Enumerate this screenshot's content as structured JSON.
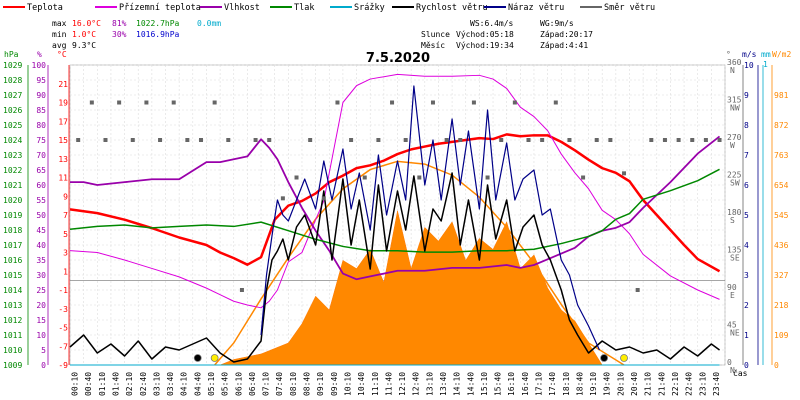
{
  "chart_data": {
    "type": "line",
    "title": "7.5.2020",
    "legend": [
      {
        "label": "Teplota",
        "color": "#ff0000"
      },
      {
        "label": "Přízemní teplota",
        "color": "#dd00dd"
      },
      {
        "label": "Vlhkost",
        "color": "#9900aa"
      },
      {
        "label": "Tlak",
        "color": "#008800"
      },
      {
        "label": "Srážky",
        "color": "#00aacc"
      },
      {
        "label": "Rychlost větru",
        "color": "#000000"
      },
      {
        "label": "Náraz větru",
        "color": "#000088"
      },
      {
        "label": "Směr větru",
        "color": "#666666"
      }
    ],
    "stats": {
      "max_label": "max",
      "min_label": "min",
      "avg_label": "avg",
      "max_temp": "16.0°C",
      "max_hum": "81%",
      "max_press": "1022.7hPa",
      "max_rain": "0.0mm",
      "min_temp": "1.0°C",
      "min_hum": "30%",
      "min_press": "1016.9hPa",
      "avg_temp": "9.3°C"
    },
    "info": {
      "ws": "WS:6.4m/s",
      "wg": "WG:9m/s",
      "sun_label": "Slunce",
      "sun_rise": "Východ:05:18",
      "sun_set": "Západ:20:17",
      "moon_label": "Měsíc",
      "moon_rise": "Východ:19:34",
      "moon_set": "Západ:4:41"
    },
    "axes": {
      "hpa_unit": "hPa",
      "pct_unit": "%",
      "c_unit": "°C",
      "deg_unit": "°",
      "ms_unit": "m/s",
      "mm_unit": "mm",
      "wm2_unit": "W/m2",
      "x_label": "čas",
      "hpa_ticks": [
        "1029",
        "1028",
        "1027",
        "1026",
        "1025",
        "1024",
        "1023",
        "1022",
        "1021",
        "1020",
        "1019",
        "1018",
        "1017",
        "1016",
        "1015",
        "1014",
        "1013",
        "1012",
        "1011",
        "1010",
        "1009"
      ],
      "pct_ticks": [
        "100",
        "95",
        "90",
        "85",
        "80",
        "75",
        "70",
        "65",
        "60",
        "55",
        "50",
        "45",
        "40",
        "35",
        "30",
        "25",
        "20",
        "15",
        "10",
        "5",
        "0"
      ],
      "c_ticks": [
        "21",
        "19",
        "17",
        "15",
        "13",
        "11",
        "9",
        "7",
        "5",
        "3",
        "1",
        "-1",
        "-3",
        "-5",
        "-7",
        "-9"
      ],
      "dir_ticks": [
        "360 N",
        "315 NW",
        "270 W",
        "225 SW",
        "180 S",
        "135 SE",
        "90 E",
        "45 NE",
        "0 N"
      ],
      "ms_ticks": [
        "10",
        "9",
        "8",
        "7",
        "6",
        "5",
        "4",
        "3",
        "2",
        "1",
        "0"
      ],
      "mm_top": "1",
      "solar_ticks": [
        "981",
        "872",
        "763",
        "654",
        "545",
        "436",
        "327",
        "218",
        "109",
        "0"
      ],
      "x_ticks": [
        "00:10",
        "00:40",
        "01:10",
        "01:40",
        "02:10",
        "02:40",
        "03:10",
        "03:40",
        "04:10",
        "04:40",
        "05:10",
        "05:40",
        "06:10",
        "06:40",
        "07:10",
        "07:40",
        "08:10",
        "08:40",
        "09:10",
        "09:40",
        "10:10",
        "10:40",
        "11:10",
        "11:40",
        "12:10",
        "12:40",
        "13:10",
        "13:40",
        "14:10",
        "14:40",
        "15:10",
        "15:40",
        "16:10",
        "16:40",
        "17:10",
        "17:40",
        "18:10",
        "18:40",
        "19:10",
        "19:40",
        "20:10",
        "20:40",
        "21:10",
        "21:40",
        "22:10",
        "22:40",
        "23:10",
        "23:40"
      ]
    },
    "series": [
      {
        "name": "Teplota",
        "unit": "°C",
        "x_hours": [
          0,
          1,
          2,
          3,
          4,
          5,
          5.5,
          6,
          6.5,
          7,
          7.5,
          8,
          8.5,
          9,
          9.5,
          10,
          10.5,
          11,
          11.5,
          12,
          12.5,
          13,
          13.5,
          14,
          14.5,
          15,
          15.5,
          16,
          16.5,
          17,
          17.5,
          18,
          18.5,
          19,
          19.5,
          20,
          20.5,
          21,
          21.5,
          22,
          22.5,
          23,
          23.8
        ],
        "values": [
          7.6,
          7.2,
          6.5,
          5.6,
          4.6,
          3.8,
          3.0,
          2.4,
          1.7,
          2.5,
          6.5,
          8.0,
          8.5,
          9.3,
          10.5,
          11.2,
          12.0,
          12.3,
          12.8,
          13.5,
          14.0,
          14.3,
          14.6,
          14.8,
          15.0,
          15.2,
          15.1,
          15.6,
          15.4,
          15.5,
          15.5,
          14.8,
          13.9,
          12.9,
          12.0,
          11.5,
          10.6,
          8.6,
          7.0,
          5.4,
          3.8,
          2.3,
          1.0
        ]
      },
      {
        "name": "Přízemní teplota",
        "unit": "°C",
        "x_hours": [
          0,
          1,
          2,
          3,
          4,
          5,
          5.5,
          6,
          6.5,
          7,
          7.3,
          7.6,
          8,
          8.5,
          9,
          9.3,
          9.6,
          10,
          10.5,
          11,
          12,
          13,
          14,
          15,
          15.5,
          16,
          16.5,
          17,
          17.5,
          18,
          18.5,
          19,
          19.5,
          20,
          20.5,
          21,
          22,
          23,
          23.8
        ],
        "values": [
          3.2,
          3.0,
          2.2,
          1.3,
          0.4,
          -0.8,
          -1.5,
          -2.2,
          -2.6,
          -2.9,
          -2.2,
          -1.0,
          2.0,
          3.0,
          6.5,
          8.5,
          13,
          19,
          20.8,
          21.5,
          22.0,
          21.8,
          21.8,
          21.9,
          21.5,
          20.5,
          18.5,
          17.5,
          16.0,
          13.5,
          11.5,
          9.8,
          7.5,
          6.5,
          5.0,
          2.8,
          0.5,
          -1.0,
          -2.0
        ]
      },
      {
        "name": "Vlhkost",
        "unit": "%",
        "x_hours": [
          0,
          0.5,
          1,
          2,
          3,
          4,
          5,
          5.5,
          6,
          6.5,
          7,
          7.3,
          7.6,
          8,
          8.5,
          9,
          9.5,
          10,
          10.5,
          11,
          12,
          13,
          14,
          15,
          16,
          16.5,
          17,
          17.5,
          18,
          18.5,
          19,
          19.5,
          20,
          20.5,
          21,
          22,
          23,
          23.8
        ],
        "values": [
          64,
          64,
          63,
          64,
          65,
          65,
          71,
          71,
          72,
          73,
          79,
          76,
          72,
          64,
          55,
          47,
          40,
          32,
          30,
          31,
          33,
          33,
          34,
          34,
          35,
          34,
          35,
          37,
          39,
          41,
          45,
          47,
          48,
          50,
          55,
          64,
          74,
          80
        ]
      },
      {
        "name": "Tlak",
        "unit": "hPa",
        "x_hours": [
          0,
          1,
          2,
          3,
          4,
          5,
          6,
          7,
          8,
          9,
          10,
          11,
          12,
          13,
          14,
          15,
          16,
          17,
          18,
          19,
          19.5,
          20,
          20.5,
          21,
          22,
          23,
          23.8
        ],
        "values": [
          1018.5,
          1018.7,
          1018.8,
          1018.6,
          1018.7,
          1018.8,
          1018.7,
          1019.0,
          1018.4,
          1017.8,
          1017.3,
          1017.0,
          1017.0,
          1016.9,
          1016.9,
          1017.0,
          1017.0,
          1017.1,
          1017.5,
          1018.0,
          1018.4,
          1019.2,
          1019.6,
          1020.6,
          1021.2,
          1021.9,
          1022.7
        ]
      },
      {
        "name": "Rychlost větru",
        "unit": "m/s",
        "x_hours": [
          0,
          0.5,
          1,
          1.5,
          2,
          2.5,
          3,
          3.5,
          4,
          4.5,
          5,
          5.5,
          6,
          6.5,
          7,
          7.2,
          7.4,
          7.6,
          7.8,
          8,
          8.3,
          8.6,
          9,
          9.3,
          9.6,
          10,
          10.3,
          10.6,
          11,
          11.3,
          11.6,
          12,
          12.3,
          12.6,
          13,
          13.3,
          13.6,
          14,
          14.3,
          14.6,
          15,
          15.3,
          15.6,
          16,
          16.3,
          16.6,
          17,
          17.3,
          17.6,
          18,
          18.3,
          18.6,
          19,
          19.5,
          20,
          20.5,
          21,
          21.5,
          22,
          22.5,
          23,
          23.5,
          23.8
        ],
        "values": [
          0.6,
          1.0,
          0.4,
          0.7,
          0.3,
          0.8,
          0.2,
          0.6,
          0.5,
          0.7,
          0.9,
          0.4,
          0.1,
          0.2,
          0.8,
          2.5,
          3.5,
          3.8,
          4.2,
          3.5,
          4.6,
          5.0,
          4.0,
          5.8,
          3.5,
          6.2,
          4.0,
          5.5,
          3.2,
          6.0,
          3.8,
          5.8,
          4.5,
          6.3,
          3.8,
          5.2,
          4.8,
          6.4,
          4.0,
          5.5,
          3.5,
          6.0,
          4.2,
          5.5,
          3.8,
          4.6,
          5.0,
          4.0,
          3.5,
          2.5,
          1.5,
          1.0,
          0.4,
          0.8,
          0.5,
          0.6,
          0.4,
          0.5,
          0.2,
          0.6,
          0.3,
          0.7,
          0.5
        ]
      },
      {
        "name": "Náraz větru",
        "unit": "m/s",
        "x_hours": [
          7,
          7.2,
          7.4,
          7.6,
          7.8,
          8,
          8.3,
          8.6,
          9,
          9.3,
          9.6,
          10,
          10.3,
          10.6,
          11,
          11.3,
          11.6,
          12,
          12.3,
          12.6,
          13,
          13.3,
          13.6,
          14,
          14.3,
          14.6,
          15,
          15.3,
          15.6,
          16,
          16.3,
          16.6,
          17,
          17.3,
          17.6,
          18,
          18.3,
          18.6,
          19,
          19.4
        ],
        "values": [
          1.0,
          3.0,
          4.3,
          5.5,
          5.0,
          4.8,
          5.5,
          6.2,
          5.2,
          6.8,
          5.5,
          7.2,
          5.2,
          6.4,
          4.5,
          7.0,
          5.0,
          6.8,
          5.5,
          9.3,
          6.0,
          7.5,
          5.5,
          8.2,
          6.0,
          7.8,
          5.2,
          8.5,
          5.5,
          7.4,
          5.5,
          6.2,
          6.5,
          5.0,
          5.2,
          3.5,
          3.0,
          2.0,
          1.3,
          0.5
        ]
      },
      {
        "name": "Směr větru",
        "unit": "°",
        "x_hours": [
          0.3,
          0.8,
          1.3,
          1.8,
          2.3,
          2.8,
          3.3,
          3.8,
          4.3,
          4.8,
          5.3,
          5.8,
          6.3,
          6.8,
          7.3,
          7.8,
          8.3,
          8.8,
          9.3,
          9.8,
          10.3,
          10.8,
          11.3,
          11.8,
          12.3,
          12.8,
          13.3,
          13.8,
          14.3,
          14.8,
          15.3,
          15.8,
          16.3,
          16.8,
          17.3,
          17.8,
          18.3,
          18.8,
          19.3,
          19.8,
          20.3,
          20.8,
          21.3,
          21.8,
          22.3,
          22.8,
          23.3,
          23.8
        ],
        "values": [
          270,
          315,
          270,
          315,
          270,
          315,
          270,
          315,
          270,
          270,
          315,
          270,
          90,
          270,
          270,
          200,
          225,
          270,
          200,
          315,
          270,
          225,
          270,
          315,
          270,
          225,
          315,
          270,
          270,
          315,
          225,
          270,
          315,
          270,
          270,
          315,
          270,
          225,
          270,
          270,
          230,
          90,
          270,
          270,
          270,
          270,
          270,
          270
        ]
      },
      {
        "name": "Srážky",
        "unit": "mm",
        "x_hours": [
          0,
          23.8
        ],
        "values": [
          0.0,
          0.0
        ]
      }
    ],
    "solar_radiation": {
      "unit": "W/m2",
      "x_hours": [
        5.5,
        6,
        7,
        8,
        8.5,
        9,
        9.5,
        10,
        10.5,
        11,
        11.5,
        12,
        12.5,
        13,
        13.5,
        14,
        14.5,
        15,
        15.5,
        16,
        16.5,
        17,
        17.5,
        18,
        18.5,
        19,
        19.5
      ],
      "values": [
        0,
        20,
        40,
        80,
        150,
        250,
        200,
        380,
        350,
        420,
        300,
        560,
        350,
        500,
        450,
        520,
        380,
        460,
        420,
        520,
        350,
        400,
        280,
        200,
        160,
        80,
        0
      ]
    },
    "solar_theoretical": {
      "unit": "W/m2",
      "x_hours": [
        5.3,
        6,
        7,
        8,
        9,
        10,
        11,
        12,
        13,
        14,
        15,
        16,
        17,
        18,
        19,
        20.3
      ],
      "values": [
        0,
        80,
        240,
        390,
        530,
        640,
        710,
        740,
        730,
        690,
        610,
        500,
        370,
        220,
        80,
        0
      ]
    },
    "markers": [
      {
        "type": "sunrise",
        "x_hours": 5.3,
        "color": "#ffee00"
      },
      {
        "type": "sunset",
        "x_hours": 20.3,
        "color": "#ffee00"
      },
      {
        "type": "moonrise",
        "x_hours": 19.57,
        "color": "#000000"
      },
      {
        "type": "moonset",
        "x_hours": 4.68,
        "color": "#000000"
      }
    ],
    "ylim_temp": [
      -9,
      23
    ],
    "ylim_hum": [
      0,
      105
    ],
    "ylim_press": [
      1009,
      1030
    ],
    "ylim_wind": [
      0,
      10
    ],
    "ylim_dir": [
      0,
      360
    ],
    "ylim_solar": [
      0,
      1090
    ],
    "xlim_hours": [
      0,
      24
    ],
    "grid": true
  }
}
